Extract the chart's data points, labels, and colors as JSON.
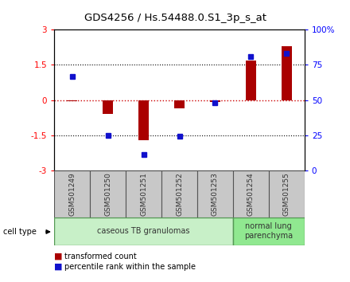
{
  "title": "GDS4256 / Hs.54488.0.S1_3p_s_at",
  "samples": [
    "GSM501249",
    "GSM501250",
    "GSM501251",
    "GSM501252",
    "GSM501253",
    "GSM501254",
    "GSM501255"
  ],
  "red_bars": [
    -0.05,
    -0.6,
    -1.7,
    -0.35,
    -0.07,
    1.7,
    2.3
  ],
  "blue_dots_left_scale": [
    1.0,
    -1.5,
    -2.3,
    -1.55,
    -0.1,
    1.85,
    2.0
  ],
  "ylim": [
    -3,
    3
  ],
  "yticks_left": [
    -3,
    -1.5,
    0,
    1.5,
    3
  ],
  "ytick_labels_left": [
    "-3",
    "-1.5",
    "0",
    "1.5",
    "3"
  ],
  "yticks_right_pos": [
    -3,
    -1.5,
    0,
    1.5,
    3
  ],
  "ytick_labels_right": [
    "0",
    "25",
    "50",
    "75",
    "100%"
  ],
  "groups": [
    {
      "label": "caseous TB granulomas",
      "samples": [
        0,
        1,
        2,
        3,
        4
      ],
      "color": "#c8f0c8"
    },
    {
      "label": "normal lung\nparenchyma",
      "samples": [
        5,
        6
      ],
      "color": "#90e890"
    }
  ],
  "bar_color": "#aa0000",
  "dot_color": "#1111cc",
  "legend_red_label": "transformed count",
  "legend_blue_label": "percentile rank within the sample",
  "cell_type_label": "cell type",
  "zero_line_color": "#cc0000",
  "sample_box_color": "#c8c8c8",
  "group_border_color": "#559955"
}
